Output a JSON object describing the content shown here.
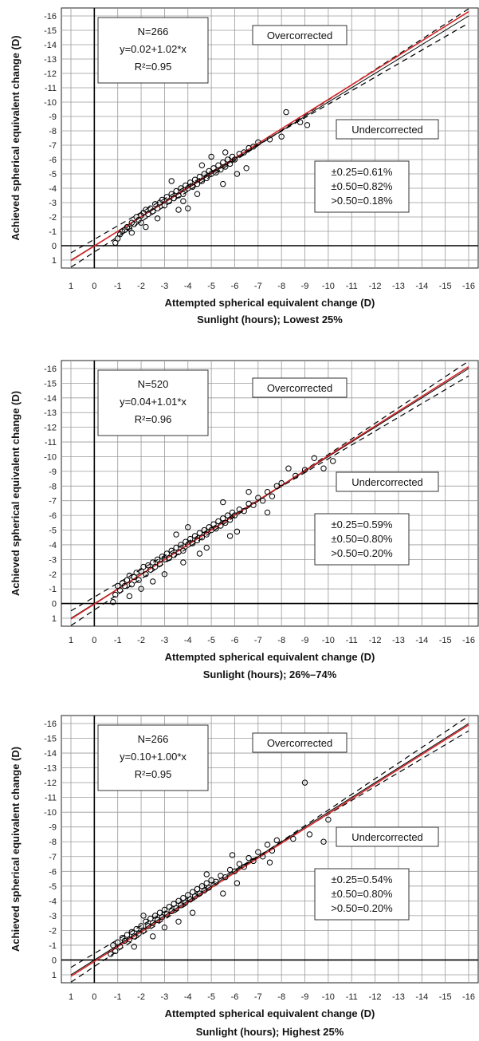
{
  "chart_data": [
    {
      "type": "scatter",
      "title": "",
      "xlabel": "Attempted spherical equivalent change (D)",
      "ylabel": "Achieved spherical equivalent change (D)",
      "subtitle": "Sunlight (hours); Lowest 25%",
      "xlim": [
        1,
        -16
      ],
      "ylim": [
        1,
        -16
      ],
      "x_ticks": [
        "1",
        "0",
        "-1",
        "-2",
        "-3",
        "-4",
        "-5",
        "-6",
        "-7",
        "-8",
        "-9",
        "-10",
        "-11",
        "-12",
        "-13",
        "-14",
        "-15",
        "-16"
      ],
      "y_ticks": [
        "-16",
        "-15",
        "-14",
        "-13",
        "-12",
        "-11",
        "-10",
        "-9",
        "-8",
        "-7",
        "-6",
        "-5",
        "-4",
        "-3",
        "-2",
        "-1",
        "0",
        "1"
      ],
      "stats": [
        "N=266",
        "y=0.02+1.02*x",
        "R²=0.95"
      ],
      "over_label": "Overcorrected",
      "under_label": "Undercorrected",
      "accuracy": [
        "±0.25=0.61%",
        "±0.50=0.82%",
        ">0.50=0.18%"
      ],
      "fit": {
        "intercept": 0.02,
        "slope": 1.02,
        "color": "#d62728"
      },
      "grid": true,
      "points": [
        [
          -0.9,
          -0.2
        ],
        [
          -1.0,
          -0.5
        ],
        [
          -1.1,
          -0.8
        ],
        [
          -1.2,
          -1.0
        ],
        [
          -1.3,
          -1.1
        ],
        [
          -1.4,
          -1.3
        ],
        [
          -1.5,
          -1.2
        ],
        [
          -1.6,
          -1.6
        ],
        [
          -1.7,
          -1.5
        ],
        [
          -1.8,
          -2.0
        ],
        [
          -1.9,
          -1.8
        ],
        [
          -2.0,
          -2.1
        ],
        [
          -2.0,
          -1.6
        ],
        [
          -2.1,
          -2.3
        ],
        [
          -2.2,
          -2.5
        ],
        [
          -2.3,
          -2.2
        ],
        [
          -2.4,
          -2.6
        ],
        [
          -2.5,
          -2.4
        ],
        [
          -2.6,
          -2.9
        ],
        [
          -2.7,
          -2.6
        ],
        [
          -2.8,
          -3.0
        ],
        [
          -2.9,
          -3.2
        ],
        [
          -3.0,
          -2.8
        ],
        [
          -3.1,
          -3.4
        ],
        [
          -3.2,
          -3.1
        ],
        [
          -3.3,
          -3.6
        ],
        [
          -3.4,
          -3.3
        ],
        [
          -3.5,
          -3.8
        ],
        [
          -3.6,
          -3.5
        ],
        [
          -3.7,
          -4.0
        ],
        [
          -3.8,
          -3.6
        ],
        [
          -3.9,
          -4.2
        ],
        [
          -4.0,
          -4.0
        ],
        [
          -4.1,
          -4.4
        ],
        [
          -4.2,
          -4.1
        ],
        [
          -4.3,
          -4.6
        ],
        [
          -4.4,
          -4.3
        ],
        [
          -4.5,
          -4.8
        ],
        [
          -4.6,
          -4.5
        ],
        [
          -4.7,
          -5.0
        ],
        [
          -4.8,
          -4.7
        ],
        [
          -4.9,
          -5.2
        ],
        [
          -5.0,
          -5.0
        ],
        [
          -5.1,
          -5.4
        ],
        [
          -5.2,
          -5.1
        ],
        [
          -5.3,
          -5.6
        ],
        [
          -5.4,
          -5.3
        ],
        [
          -5.5,
          -5.8
        ],
        [
          -5.6,
          -5.5
        ],
        [
          -5.7,
          -6.0
        ],
        [
          -5.8,
          -5.7
        ],
        [
          -5.9,
          -6.2
        ],
        [
          -6.0,
          -6.0
        ],
        [
          -6.2,
          -6.4
        ],
        [
          -6.4,
          -6.5
        ],
        [
          -6.6,
          -6.8
        ],
        [
          -6.8,
          -6.9
        ],
        [
          -7.0,
          -7.2
        ],
        [
          -7.5,
          -7.4
        ],
        [
          -8.0,
          -7.6
        ],
        [
          -8.2,
          -9.3
        ],
        [
          -8.8,
          -8.6
        ],
        [
          -9.1,
          -8.4
        ],
        [
          -4.0,
          -2.6
        ],
        [
          -2.7,
          -1.9
        ],
        [
          -3.3,
          -4.5
        ],
        [
          -5.5,
          -4.3
        ],
        [
          -6.5,
          -5.4
        ],
        [
          -3.8,
          -3.1
        ],
        [
          -4.6,
          -5.6
        ],
        [
          -2.2,
          -1.3
        ],
        [
          -5.0,
          -6.2
        ],
        [
          -6.1,
          -5.0
        ],
        [
          -1.6,
          -0.9
        ],
        [
          -4.4,
          -3.6
        ],
        [
          -3.6,
          -2.5
        ],
        [
          -5.6,
          -6.5
        ]
      ]
    },
    {
      "type": "scatter",
      "title": "",
      "xlabel": "Attempted spherical equivalent change (D)",
      "ylabel": "Achieved spherical equivalent change (D)",
      "subtitle": "Sunlight (hours); 26%–74%",
      "xlim": [
        1,
        -16
      ],
      "ylim": [
        1,
        -16
      ],
      "x_ticks": [
        "1",
        "0",
        "-1",
        "-2",
        "-3",
        "-4",
        "-5",
        "-6",
        "-7",
        "-8",
        "-9",
        "-10",
        "-11",
        "-12",
        "-13",
        "-14",
        "-15",
        "-16"
      ],
      "y_ticks": [
        "-16",
        "-15",
        "-14",
        "-13",
        "-12",
        "-11",
        "-10",
        "-9",
        "-8",
        "-7",
        "-6",
        "-5",
        "-4",
        "-3",
        "-2",
        "-1",
        "0",
        "1"
      ],
      "stats": [
        "N=520",
        "y=0.04+1.01*x",
        "R²=0.96"
      ],
      "over_label": "Overcorrected",
      "under_label": "Undercorrected",
      "accuracy": [
        "±0.25=0.59%",
        "±0.50=0.80%",
        ">0.50=0.20%"
      ],
      "fit": {
        "intercept": 0.04,
        "slope": 1.01,
        "color": "#d62728"
      },
      "grid": true,
      "points": [
        [
          -0.8,
          -0.1
        ],
        [
          -0.9,
          -0.6
        ],
        [
          -1.0,
          -1.2
        ],
        [
          -1.1,
          -0.9
        ],
        [
          -1.2,
          -1.4
        ],
        [
          -1.3,
          -1.2
        ],
        [
          -1.4,
          -1.6
        ],
        [
          -1.5,
          -1.9
        ],
        [
          -1.6,
          -1.3
        ],
        [
          -1.7,
          -1.8
        ],
        [
          -1.8,
          -2.1
        ],
        [
          -1.9,
          -1.6
        ],
        [
          -2.0,
          -2.2
        ],
        [
          -2.1,
          -2.5
        ],
        [
          -2.2,
          -2.0
        ],
        [
          -2.3,
          -2.6
        ],
        [
          -2.4,
          -2.3
        ],
        [
          -2.5,
          -2.8
        ],
        [
          -2.6,
          -2.5
        ],
        [
          -2.7,
          -3.0
        ],
        [
          -2.8,
          -2.7
        ],
        [
          -2.9,
          -3.2
        ],
        [
          -3.0,
          -3.0
        ],
        [
          -3.1,
          -3.4
        ],
        [
          -3.2,
          -3.1
        ],
        [
          -3.3,
          -3.6
        ],
        [
          -3.4,
          -3.3
        ],
        [
          -3.5,
          -3.8
        ],
        [
          -3.6,
          -3.5
        ],
        [
          -3.7,
          -4.0
        ],
        [
          -3.8,
          -3.6
        ],
        [
          -3.9,
          -4.2
        ],
        [
          -4.0,
          -4.0
        ],
        [
          -4.1,
          -4.4
        ],
        [
          -4.2,
          -4.1
        ],
        [
          -4.3,
          -4.6
        ],
        [
          -4.4,
          -4.3
        ],
        [
          -4.5,
          -4.8
        ],
        [
          -4.6,
          -4.5
        ],
        [
          -4.7,
          -5.0
        ],
        [
          -4.8,
          -4.7
        ],
        [
          -4.9,
          -5.2
        ],
        [
          -5.0,
          -5.0
        ],
        [
          -5.1,
          -5.4
        ],
        [
          -5.2,
          -5.1
        ],
        [
          -5.3,
          -5.6
        ],
        [
          -5.4,
          -5.3
        ],
        [
          -5.5,
          -5.8
        ],
        [
          -5.6,
          -5.5
        ],
        [
          -5.7,
          -6.0
        ],
        [
          -5.8,
          -5.7
        ],
        [
          -5.9,
          -6.2
        ],
        [
          -6.0,
          -6.0
        ],
        [
          -6.2,
          -6.4
        ],
        [
          -6.4,
          -6.3
        ],
        [
          -6.6,
          -6.8
        ],
        [
          -6.8,
          -6.7
        ],
        [
          -7.0,
          -7.2
        ],
        [
          -7.2,
          -7.0
        ],
        [
          -7.4,
          -7.6
        ],
        [
          -7.6,
          -7.3
        ],
        [
          -7.8,
          -8.0
        ],
        [
          -8.0,
          -8.2
        ],
        [
          -8.3,
          -9.2
        ],
        [
          -8.6,
          -8.7
        ],
        [
          -9.0,
          -9.1
        ],
        [
          -9.4,
          -9.9
        ],
        [
          -9.8,
          -9.2
        ],
        [
          -10.2,
          -9.7
        ],
        [
          -3.0,
          -2.0
        ],
        [
          -2.5,
          -1.5
        ],
        [
          -4.5,
          -3.4
        ],
        [
          -5.8,
          -4.6
        ],
        [
          -6.1,
          -4.9
        ],
        [
          -4.0,
          -5.2
        ],
        [
          -3.5,
          -4.7
        ],
        [
          -5.5,
          -6.9
        ],
        [
          -6.6,
          -7.6
        ],
        [
          -2.0,
          -1.0
        ],
        [
          -1.5,
          -0.5
        ],
        [
          -4.8,
          -3.8
        ],
        [
          -3.8,
          -2.8
        ],
        [
          -7.4,
          -6.2
        ]
      ]
    },
    {
      "type": "scatter",
      "title": "",
      "xlabel": "Attempted spherical equivalent change (D)",
      "ylabel": "Achieved spherical equivalent change (D)",
      "subtitle": "Sunlight (hours); Highest 25%",
      "xlim": [
        1,
        -16
      ],
      "ylim": [
        1,
        -16
      ],
      "x_ticks": [
        "1",
        "0",
        "-1",
        "-2",
        "-3",
        "-4",
        "-5",
        "-6",
        "-7",
        "-8",
        "-9",
        "-10",
        "-11",
        "-12",
        "-13",
        "-14",
        "-15",
        "-16"
      ],
      "y_ticks": [
        "-16",
        "-15",
        "-14",
        "-13",
        "-12",
        "-11",
        "-10",
        "-9",
        "-8",
        "-7",
        "-6",
        "-5",
        "-4",
        "-3",
        "-2",
        "-1",
        "0",
        "1"
      ],
      "stats": [
        "N=266",
        "y=0.10+1.00*x",
        "R²=0.95"
      ],
      "over_label": "Overcorrected",
      "under_label": "Undercorrected",
      "accuracy": [
        "±0.25=0.54%",
        "±0.50=0.80%",
        ">0.50=0.20%"
      ],
      "fit": {
        "intercept": 0.1,
        "slope": 1.0,
        "color": "#d62728"
      },
      "grid": true,
      "points": [
        [
          -0.7,
          -0.4
        ],
        [
          -0.8,
          -1.0
        ],
        [
          -0.9,
          -0.6
        ],
        [
          -1.0,
          -1.2
        ],
        [
          -1.1,
          -0.9
        ],
        [
          -1.2,
          -1.5
        ],
        [
          -1.3,
          -1.3
        ],
        [
          -1.4,
          -1.7
        ],
        [
          -1.5,
          -1.4
        ],
        [
          -1.6,
          -1.9
        ],
        [
          -1.7,
          -1.6
        ],
        [
          -1.8,
          -2.1
        ],
        [
          -1.9,
          -1.8
        ],
        [
          -2.0,
          -2.3
        ],
        [
          -2.1,
          -2.0
        ],
        [
          -2.2,
          -2.6
        ],
        [
          -2.3,
          -2.3
        ],
        [
          -2.4,
          -2.8
        ],
        [
          -2.5,
          -2.5
        ],
        [
          -2.6,
          -3.0
        ],
        [
          -2.7,
          -2.7
        ],
        [
          -2.8,
          -3.2
        ],
        [
          -2.9,
          -2.9
        ],
        [
          -3.0,
          -3.4
        ],
        [
          -3.1,
          -3.1
        ],
        [
          -3.2,
          -3.6
        ],
        [
          -3.3,
          -3.3
        ],
        [
          -3.4,
          -3.8
        ],
        [
          -3.5,
          -3.5
        ],
        [
          -3.6,
          -4.0
        ],
        [
          -3.7,
          -3.7
        ],
        [
          -3.8,
          -4.2
        ],
        [
          -3.9,
          -3.9
        ],
        [
          -4.0,
          -4.4
        ],
        [
          -4.1,
          -4.1
        ],
        [
          -4.2,
          -4.6
        ],
        [
          -4.3,
          -4.3
        ],
        [
          -4.4,
          -4.8
        ],
        [
          -4.5,
          -4.5
        ],
        [
          -4.6,
          -5.0
        ],
        [
          -4.7,
          -4.7
        ],
        [
          -4.8,
          -5.2
        ],
        [
          -4.9,
          -4.9
        ],
        [
          -5.0,
          -5.4
        ],
        [
          -5.2,
          -5.3
        ],
        [
          -5.4,
          -5.7
        ],
        [
          -5.6,
          -5.6
        ],
        [
          -5.8,
          -6.1
        ],
        [
          -6.0,
          -6.0
        ],
        [
          -6.2,
          -6.5
        ],
        [
          -6.4,
          -6.3
        ],
        [
          -6.6,
          -6.9
        ],
        [
          -6.8,
          -6.7
        ],
        [
          -7.0,
          -7.3
        ],
        [
          -7.2,
          -7.0
        ],
        [
          -7.4,
          -7.8
        ],
        [
          -7.6,
          -7.4
        ],
        [
          -7.8,
          -8.1
        ],
        [
          -8.5,
          -8.2
        ],
        [
          -9.0,
          -12.0
        ],
        [
          -9.2,
          -8.5
        ],
        [
          -9.8,
          -8.0
        ],
        [
          -10.0,
          -9.5
        ],
        [
          -2.5,
          -1.6
        ],
        [
          -3.0,
          -2.2
        ],
        [
          -1.7,
          -0.9
        ],
        [
          -4.2,
          -3.2
        ],
        [
          -5.5,
          -4.5
        ],
        [
          -5.9,
          -7.1
        ],
        [
          -3.6,
          -2.6
        ],
        [
          -6.1,
          -5.2
        ],
        [
          -7.5,
          -6.6
        ],
        [
          -2.1,
          -3.0
        ],
        [
          -4.8,
          -5.8
        ]
      ]
    }
  ]
}
